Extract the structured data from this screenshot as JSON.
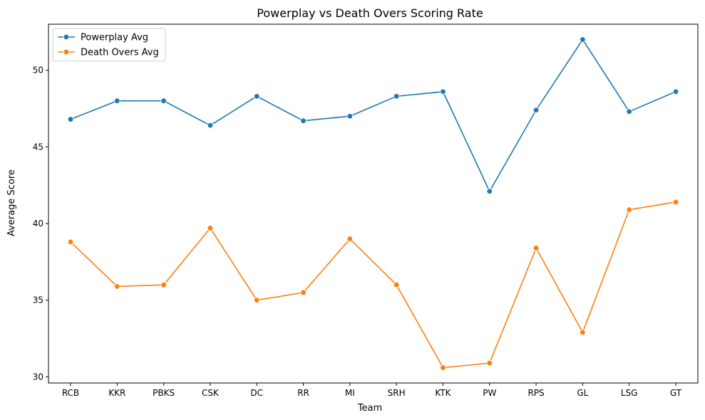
{
  "chart_data": {
    "type": "line",
    "title": "Powerplay vs Death Overs Scoring Rate",
    "xlabel": "Team",
    "ylabel": "Average Score",
    "categories": [
      "RCB",
      "KKR",
      "PBKS",
      "CSK",
      "DC",
      "RR",
      "MI",
      "SRH",
      "KTK",
      "PW",
      "RPS",
      "GL",
      "LSG",
      "GT"
    ],
    "ylim": [
      29.6,
      53.0
    ],
    "yticks": [
      30,
      35,
      40,
      45,
      50
    ],
    "grid": false,
    "legend_position": "top-left",
    "series": [
      {
        "name": "Powerplay Avg",
        "color": "#1f77b4",
        "marker": "circle",
        "values": [
          46.8,
          48.0,
          48.0,
          46.4,
          48.3,
          46.7,
          47.0,
          48.3,
          48.6,
          42.1,
          47.4,
          52.0,
          47.3,
          48.6
        ]
      },
      {
        "name": "Death Overs Avg",
        "color": "#ff7f0e",
        "marker": "circle",
        "values": [
          38.8,
          35.9,
          36.0,
          39.7,
          35.0,
          35.5,
          39.0,
          36.0,
          30.6,
          30.9,
          38.4,
          32.9,
          40.9,
          41.4
        ]
      }
    ]
  }
}
